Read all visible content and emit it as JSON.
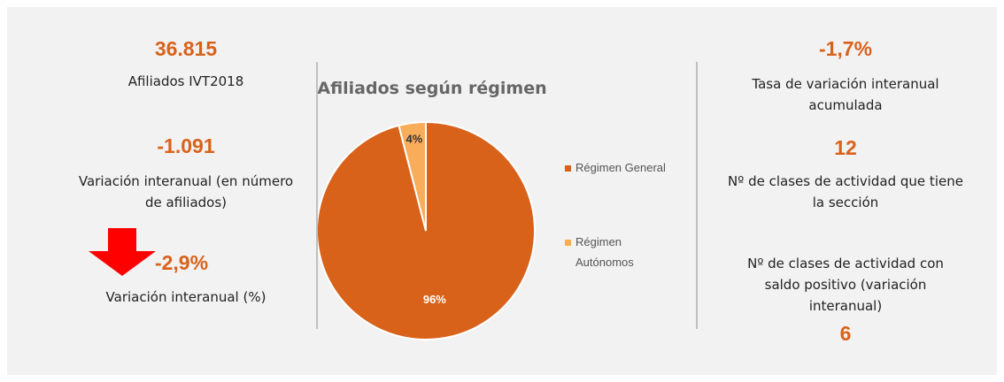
{
  "left": {
    "total": "36.815",
    "total_label": "Afiliados IVT2018",
    "change": "-1.091",
    "change_label": "Variación interanual (en número de afiliados)",
    "pct": "-2,9%",
    "pct_label": "Variación interanual (%)"
  },
  "right": {
    "rate": "-1,7%",
    "rate_label": "Tasa de variación interanual acumulada",
    "classes": "12",
    "classes_label": "Nº de clases de actividad que tiene la sección",
    "positive_label": "Nº de clases de actividad con saldo positivo (variación interanual)",
    "positive": "6"
  },
  "chart_data": {
    "type": "pie",
    "title": "Afiliados según régimen",
    "categories": [
      "Régimen General",
      "Régimen Autónomos"
    ],
    "values": [
      96,
      4
    ],
    "value_labels": [
      "96%",
      "4%"
    ],
    "colors": [
      "#d9621b",
      "#f9ad5a"
    ]
  }
}
